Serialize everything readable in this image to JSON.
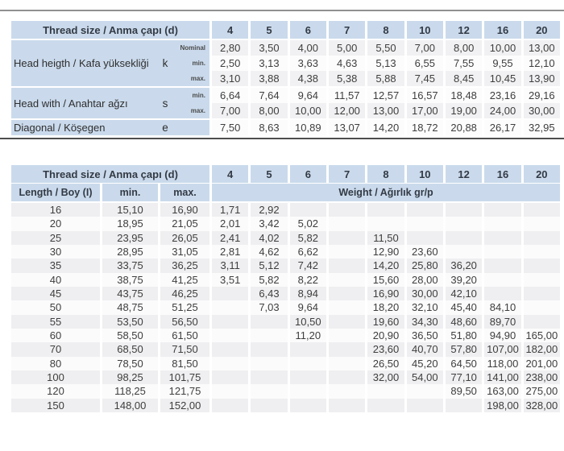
{
  "colors": {
    "header_blue": "#cadaec",
    "stripe_gray": "#efeff1",
    "divider_dark": "#4d4d4d",
    "divider_light": "#909090",
    "text_dark": "#333a44",
    "text_number": "#3e3e3e"
  },
  "dims_table": {
    "header": {
      "label": "Thread size / Anma çapı (d)",
      "sizes": [
        "4",
        "5",
        "6",
        "7",
        "8",
        "10",
        "12",
        "16",
        "20"
      ]
    },
    "row_groups": [
      {
        "label": "Head heigth / Kafa yüksekliği",
        "symbol": "k",
        "rows": [
          {
            "sub": "Nominal",
            "values": [
              "2,80",
              "3,50",
              "4,00",
              "5,00",
              "5,50",
              "7,00",
              "8,00",
              "10,00",
              "13,00"
            ]
          },
          {
            "sub": "min.",
            "values": [
              "2,50",
              "3,13",
              "3,63",
              "4,63",
              "5,13",
              "6,55",
              "7,55",
              "9,55",
              "12,10"
            ]
          },
          {
            "sub": "max.",
            "values": [
              "3,10",
              "3,88",
              "4,38",
              "5,38",
              "5,88",
              "7,45",
              "8,45",
              "10,45",
              "13,90"
            ]
          }
        ]
      },
      {
        "label": "Head with / Anahtar ağzı",
        "symbol": "s",
        "rows": [
          {
            "sub": "min.",
            "values": [
              "6,64",
              "7,64",
              "9,64",
              "11,57",
              "12,57",
              "16,57",
              "18,48",
              "23,16",
              "29,16"
            ]
          },
          {
            "sub": "max.",
            "values": [
              "7,00",
              "8,00",
              "10,00",
              "12,00",
              "13,00",
              "17,00",
              "19,00",
              "24,00",
              "30,00"
            ]
          }
        ]
      },
      {
        "label": "Diagonal / Köşegen",
        "symbol": "e",
        "rows": [
          {
            "sub": "",
            "values": [
              "7,50",
              "8,63",
              "10,89",
              "13,07",
              "14,20",
              "18,72",
              "20,88",
              "26,17",
              "32,95"
            ]
          }
        ]
      }
    ]
  },
  "weight_table": {
    "header": {
      "label": "Thread size / Anma çapı (d)",
      "sizes": [
        "4",
        "5",
        "6",
        "7",
        "8",
        "10",
        "12",
        "16",
        "20"
      ]
    },
    "subheader": {
      "length_label": "Length / Boy (I)",
      "min_label": "min.",
      "max_label": "max.",
      "weight_label": "Weight / Ağırlık gr/p"
    },
    "rows": [
      {
        "length": "16",
        "min": "15,10",
        "max": "16,90",
        "weights": [
          "1,71",
          "2,92",
          "",
          "",
          "",
          "",
          "",
          "",
          ""
        ]
      },
      {
        "length": "20",
        "min": "18,95",
        "max": "21,05",
        "weights": [
          "2,01",
          "3,42",
          "5,02",
          "",
          "",
          "",
          "",
          "",
          ""
        ]
      },
      {
        "length": "25",
        "min": "23,95",
        "max": "26,05",
        "weights": [
          "2,41",
          "4,02",
          "5,82",
          "",
          "11,50",
          "",
          "",
          "",
          ""
        ]
      },
      {
        "length": "30",
        "min": "28,95",
        "max": "31,05",
        "weights": [
          "2,81",
          "4,62",
          "6,62",
          "",
          "12,90",
          "23,60",
          "",
          "",
          ""
        ]
      },
      {
        "length": "35",
        "min": "33,75",
        "max": "36,25",
        "weights": [
          "3,11",
          "5,12",
          "7,42",
          "",
          "14,20",
          "25,80",
          "36,20",
          "",
          ""
        ]
      },
      {
        "length": "40",
        "min": "38,75",
        "max": "41,25",
        "weights": [
          "3,51",
          "5,82",
          "8,22",
          "",
          "15,60",
          "28,00",
          "39,20",
          "",
          ""
        ]
      },
      {
        "length": "45",
        "min": "43,75",
        "max": "46,25",
        "weights": [
          "",
          "6,43",
          "8,94",
          "",
          "16,90",
          "30,00",
          "42,10",
          "",
          ""
        ]
      },
      {
        "length": "50",
        "min": "48,75",
        "max": "51,25",
        "weights": [
          "",
          "7,03",
          "9,64",
          "",
          "18,20",
          "32,10",
          "45,40",
          "84,10",
          ""
        ]
      },
      {
        "length": "55",
        "min": "53,50",
        "max": "56,50",
        "weights": [
          "",
          "",
          "10,50",
          "",
          "19,60",
          "34,30",
          "48,60",
          "89,70",
          ""
        ]
      },
      {
        "length": "60",
        "min": "58,50",
        "max": "61,50",
        "weights": [
          "",
          "",
          "11,20",
          "",
          "20,90",
          "36,50",
          "51,80",
          "94,90",
          "165,00"
        ]
      },
      {
        "length": "70",
        "min": "68,50",
        "max": "71,50",
        "weights": [
          "",
          "",
          "",
          "",
          "23,60",
          "40,70",
          "57,80",
          "107,00",
          "182,00"
        ]
      },
      {
        "length": "80",
        "min": "78,50",
        "max": "81,50",
        "weights": [
          "",
          "",
          "",
          "",
          "26,50",
          "45,20",
          "64,50",
          "118,00",
          "201,00"
        ]
      },
      {
        "length": "100",
        "min": "98,25",
        "max": "101,75",
        "weights": [
          "",
          "",
          "",
          "",
          "32,00",
          "54,00",
          "77,10",
          "141,00",
          "238,00"
        ]
      },
      {
        "length": "120",
        "min": "118,25",
        "max": "121,75",
        "weights": [
          "",
          "",
          "",
          "",
          "",
          "",
          "89,50",
          "163,00",
          "275,00"
        ]
      },
      {
        "length": "150",
        "min": "148,00",
        "max": "152,00",
        "weights": [
          "",
          "",
          "",
          "",
          "",
          "",
          "",
          "198,00",
          "328,00"
        ]
      }
    ]
  }
}
